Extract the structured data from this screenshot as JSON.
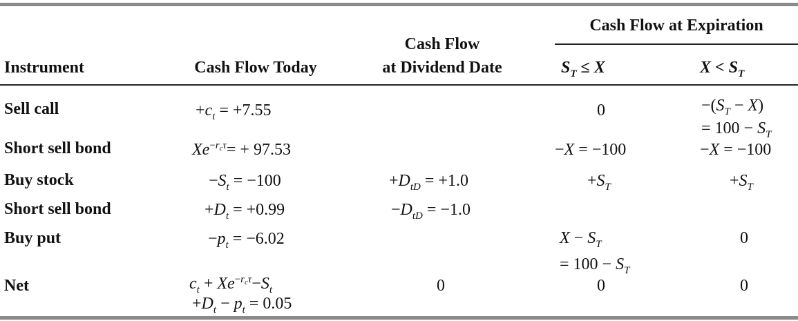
{
  "header": {
    "instrument": "Instrument",
    "today": "Cash Flow Today",
    "dividend_line1": "Cash Flow",
    "dividend_line2": "at Dividend Date",
    "expiration": "Cash Flow at Expiration",
    "exp_col1": "S_T ≤ X",
    "exp_col2": "X < S_T"
  },
  "rows": [
    {
      "instrument": "Sell call",
      "today": "+c_t = +7.55",
      "dividend": "",
      "exp1": "0",
      "exp2": "−(S_T − X) = 100 − S_T"
    },
    {
      "instrument": "Short sell bond",
      "today": "Xe^(−r_c τ) = + 97.53",
      "dividend": "",
      "exp1": "−X = −100",
      "exp2": "−X = −100"
    },
    {
      "instrument": "Buy stock",
      "today": "−S_t = −100",
      "dividend": "+D_tD = +1.0",
      "exp1": "+S_T",
      "exp2": "+S_T"
    },
    {
      "instrument": "Short sell bond",
      "today": "+D_t = +0.99",
      "dividend": "−D_tD = −1.0",
      "exp1": "",
      "exp2": ""
    },
    {
      "instrument": "Buy put",
      "today": "−p_t = −6.02",
      "dividend": "",
      "exp1": "X − S_T = 100 − S_T",
      "exp2": "0"
    },
    {
      "instrument": "Net",
      "today": "c_t + Xe^(−r_c τ) − S_t + D_t − p_t = 0.05",
      "dividend": "0",
      "exp1": "0",
      "exp2": "0"
    }
  ],
  "static": {
    "n_775": "7.55",
    "n_9753": "97.53",
    "n_100": "100",
    "n_10": "1.0",
    "n_099": "0.99",
    "n_602": "6.02",
    "n_005": "0.05",
    "zero": "0"
  }
}
